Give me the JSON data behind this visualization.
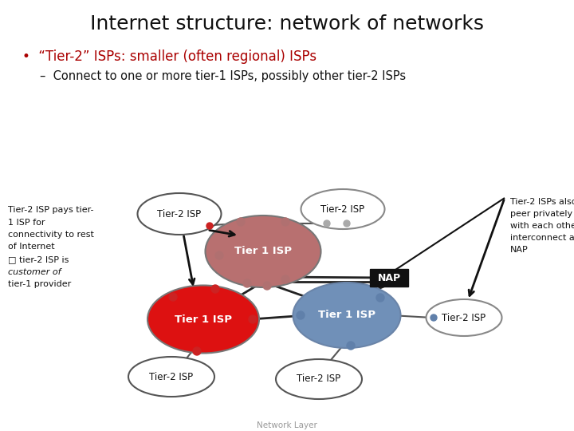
{
  "title": "Internet structure: network of networks",
  "bullet1": "•  “Tier-2” ISPs: smaller (often regional) ISPs",
  "bullet1_color": "#aa0000",
  "bullet2": "–  Connect to one or more tier-1 ISPs, possibly other tier-2 ISPs",
  "left_note_lines": [
    "Tier-2 ISP pays tier-",
    "1 ISP for",
    "connectivity to rest",
    "of Internet",
    "□ tier-2 ISP is",
    "customer of",
    "tier-1 provider"
  ],
  "right_note_lines": [
    "Tier-2 ISPs also",
    "peer privately",
    "with each other,",
    "interconnect at",
    "NAP"
  ],
  "footer": "Network Layer",
  "bg_color": "#ffffff",
  "tier1_rose_color": "#b87070",
  "tier1_red_color": "#dd1111",
  "tier1_blue_color": "#7090b8",
  "nap_bg": "#111111",
  "nap_text": "#ffffff",
  "tier2_edge": "#555555",
  "conn_rose": "#b07070",
  "conn_red": "#cc2222",
  "conn_blue": "#6080aa",
  "conn_white": "#aaaaaa"
}
